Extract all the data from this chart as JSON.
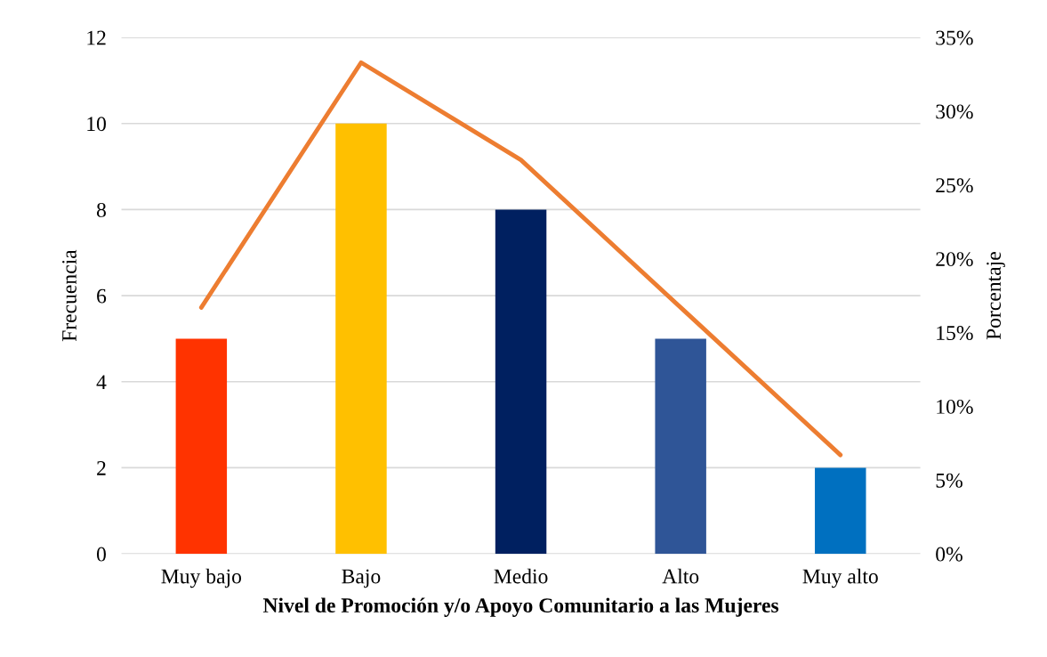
{
  "chart_data": {
    "type": "bar",
    "xlabel": "Nivel de Promoción y/o Apoyo Comunitario a las Mujeres",
    "ylabel": "Frecuencia",
    "y2label": "Porcentaje",
    "categories": [
      "Muy bajo",
      "Bajo",
      "Medio",
      "Alto",
      "Muy alto"
    ],
    "series": [
      {
        "colors": [
          "#ff3300",
          "#ffc000",
          "#002060",
          "#2f5597",
          "#0070c0"
        ],
        "values": [
          5,
          10,
          8,
          5,
          2
        ]
      },
      {
        "type": "line",
        "axis": "y2",
        "color": "#ed7d31",
        "values": [
          16.7,
          33.3,
          26.7,
          16.7,
          6.7
        ]
      }
    ],
    "ylim": [
      0,
      12
    ],
    "yticks": [
      0,
      2,
      4,
      6,
      8,
      10,
      12
    ],
    "y2lim": [
      0,
      35
    ],
    "y2ticks": [
      {
        "value": 0,
        "label": "0%"
      },
      {
        "value": 5,
        "label": "5%"
      },
      {
        "value": 10,
        "label": "10%"
      },
      {
        "value": 15,
        "label": "15%"
      },
      {
        "value": 20,
        "label": "20%"
      },
      {
        "value": 25,
        "label": "25%"
      },
      {
        "value": 30,
        "label": "30%"
      },
      {
        "value": 35,
        "label": "35%"
      }
    ],
    "grid": "y"
  }
}
